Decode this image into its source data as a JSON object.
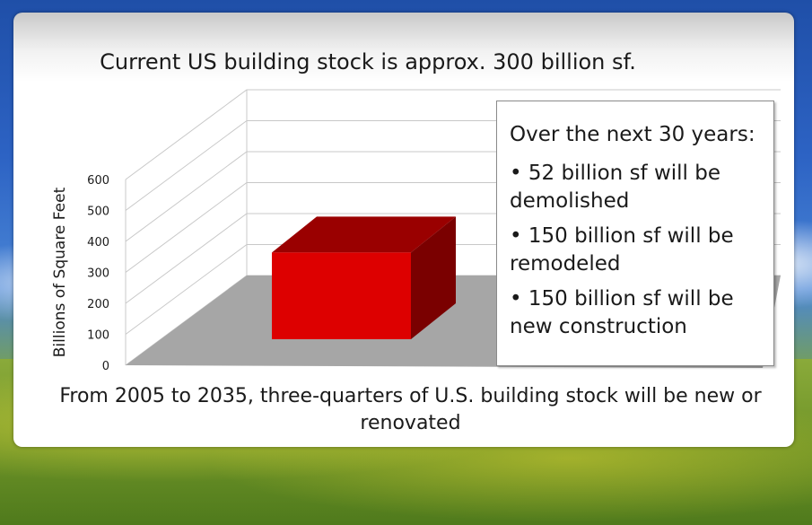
{
  "chart_data": {
    "type": "bar",
    "title": "Current US building stock is approx. 300 billion sf.",
    "ylabel": "Billions  of  Square Feet",
    "ylim": [
      0,
      600
    ],
    "y_ticks": [
      "0",
      "100",
      "200",
      "300",
      "400",
      "500",
      "600"
    ],
    "values": [
      400
    ],
    "style": "3d",
    "bar_color": "#dd0000",
    "floor_color": "#a6a6a6",
    "grid": true
  },
  "callout": {
    "heading": "Over the next 30 years:",
    "items": [
      "• 52 billion sf will  be demolished",
      "• 150 billion sf will be remodeled",
      "• 150 billion sf will be new construction"
    ]
  },
  "caption": "From 2005 to 2035, three-quarters of U.S. building stock will be new or renovated"
}
